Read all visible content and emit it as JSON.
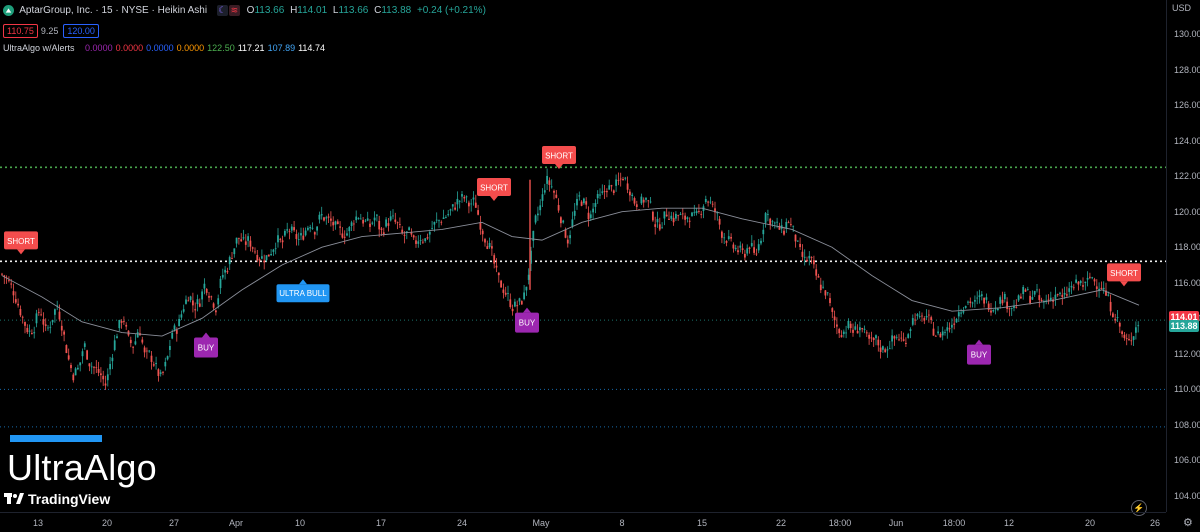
{
  "legend": {
    "symbol": "AptarGroup, Inc. · 15 · NYSE · Heikin Ashi",
    "o_label": "O",
    "o_value": "113.66",
    "h_label": "H",
    "h_value": "114.01",
    "l_label": "L",
    "l_value": "113.66",
    "c_label": "C",
    "c_value": "113.88",
    "change": "+0.24 (+0.21%)",
    "sell_price": "110.75",
    "spread": "9.25",
    "buy_price": "120.00",
    "indicator_name": "UltraAlgo w/Alerts",
    "indicator_values": [
      {
        "text": "0.0000",
        "color": "#9c27b0"
      },
      {
        "text": "0.0000",
        "color": "#f23645"
      },
      {
        "text": "0.0000",
        "color": "#2962ff"
      },
      {
        "text": "0.0000",
        "color": "#ff9800"
      },
      {
        "text": "122.50",
        "color": "#4caf50"
      },
      {
        "text": "117.21",
        "color": "#ffffff"
      },
      {
        "text": "107.89",
        "color": "#42a5f5"
      },
      {
        "text": "114.74",
        "color": "#ffffff"
      }
    ]
  },
  "price_axis": {
    "currency": "USD",
    "labels": [
      "130.00",
      "128.00",
      "126.00",
      "124.00",
      "122.00",
      "120.00",
      "118.00",
      "116.00",
      "114.00",
      "112.00",
      "110.00",
      "108.00",
      "106.00",
      "104.00"
    ],
    "tag_high": "114.01",
    "tag_last": "113.88"
  },
  "time_axis": {
    "labels": [
      "13",
      "20",
      "27",
      "Apr",
      "10",
      "17",
      "24",
      "May",
      "8",
      "15",
      "22",
      "18:00",
      "Jun",
      "18:00",
      "12",
      "20",
      "26"
    ]
  },
  "watermark": {
    "text": "UltraAlgo",
    "brand": "TradingView"
  },
  "colors": {
    "up": "#26a69a",
    "down": "#ef5350",
    "short_signal": "#f44d4d",
    "buy_signal": "#9c27b0",
    "ultra_bull": "#2196f3",
    "green_level": "#4caf50",
    "blue_level": "#2196f3"
  },
  "icons": [
    "settings-icon",
    "alert-icon",
    "tradingview-logo-icon"
  ],
  "chart_data": {
    "type": "candlestick",
    "title": "AptarGroup, Inc. · 15 · NYSE · Heikin Ashi",
    "ylim": [
      103,
      131
    ],
    "grid": false,
    "horizontal_levels": [
      {
        "value": 122.5,
        "style": "dotted",
        "color": "#4caf50"
      },
      {
        "value": 117.21,
        "style": "dotted",
        "color": "#ffffff"
      },
      {
        "value": 113.9,
        "style": "dotted",
        "color": "#26a69a"
      },
      {
        "value": 110.0,
        "style": "dotted",
        "color": "#2196f3"
      },
      {
        "value": 107.89,
        "style": "dotted",
        "color": "#2196f3"
      }
    ],
    "price_path": [
      {
        "t": 0,
        "p": 116.5
      },
      {
        "t": 5,
        "p": 116.2
      },
      {
        "t": 11,
        "p": 115.6
      },
      {
        "t": 16,
        "p": 114.8
      },
      {
        "t": 22,
        "p": 113.8
      },
      {
        "t": 27,
        "p": 113.2
      },
      {
        "t": 32,
        "p": 113.5
      },
      {
        "t": 38,
        "p": 114.6
      },
      {
        "t": 44,
        "p": 113.2
      },
      {
        "t": 49,
        "p": 113.8
      },
      {
        "t": 55,
        "p": 114.8
      },
      {
        "t": 60,
        "p": 113.6
      },
      {
        "t": 66,
        "p": 111.8
      },
      {
        "t": 71,
        "p": 110.8
      },
      {
        "t": 77,
        "p": 111.2
      },
      {
        "t": 82,
        "p": 112.6
      },
      {
        "t": 88,
        "p": 111.4
      },
      {
        "t": 93,
        "p": 111.2
      },
      {
        "t": 99,
        "p": 110.8
      },
      {
        "t": 104,
        "p": 110.2
      },
      {
        "t": 110,
        "p": 112.0
      },
      {
        "t": 115,
        "p": 113.2
      },
      {
        "t": 121,
        "p": 114.2
      },
      {
        "t": 126,
        "p": 112.8
      },
      {
        "t": 132,
        "p": 112.4
      },
      {
        "t": 137,
        "p": 113.6
      },
      {
        "t": 143,
        "p": 111.8
      },
      {
        "t": 148,
        "p": 112.0
      },
      {
        "t": 154,
        "p": 111.2
      },
      {
        "t": 159,
        "p": 110.6
      },
      {
        "t": 165,
        "p": 111.6
      },
      {
        "t": 170,
        "p": 113.2
      },
      {
        "t": 176,
        "p": 113.5
      },
      {
        "t": 181,
        "p": 114.6
      },
      {
        "t": 187,
        "p": 115.4
      },
      {
        "t": 192,
        "p": 114.6
      },
      {
        "t": 198,
        "p": 115.0
      },
      {
        "t": 203,
        "p": 116.0
      },
      {
        "t": 209,
        "p": 115.2
      },
      {
        "t": 214,
        "p": 114.6
      },
      {
        "t": 220,
        "p": 116.4
      },
      {
        "t": 225,
        "p": 116.8
      },
      {
        "t": 231,
        "p": 117.8
      },
      {
        "t": 236,
        "p": 118.6
      },
      {
        "t": 242,
        "p": 118.2
      },
      {
        "t": 247,
        "p": 118.4
      },
      {
        "t": 253,
        "p": 117.8
      },
      {
        "t": 258,
        "p": 117.4
      },
      {
        "t": 264,
        "p": 117.4
      },
      {
        "t": 269,
        "p": 117.8
      },
      {
        "t": 275,
        "p": 118.4
      },
      {
        "t": 280,
        "p": 118.2
      },
      {
        "t": 286,
        "p": 119.0
      },
      {
        "t": 291,
        "p": 118.8
      },
      {
        "t": 297,
        "p": 118.4
      },
      {
        "t": 302,
        "p": 118.8
      },
      {
        "t": 308,
        "p": 119.4
      },
      {
        "t": 313,
        "p": 119.0
      },
      {
        "t": 319,
        "p": 119.8
      },
      {
        "t": 324,
        "p": 119.6
      },
      {
        "t": 330,
        "p": 119.4
      },
      {
        "t": 335,
        "p": 119.0
      },
      {
        "t": 341,
        "p": 118.8
      },
      {
        "t": 346,
        "p": 118.8
      },
      {
        "t": 352,
        "p": 119.6
      },
      {
        "t": 357,
        "p": 119.8
      },
      {
        "t": 363,
        "p": 119.4
      },
      {
        "t": 368,
        "p": 119.2
      },
      {
        "t": 374,
        "p": 119.8
      },
      {
        "t": 379,
        "p": 118.8
      },
      {
        "t": 385,
        "p": 119.4
      },
      {
        "t": 390,
        "p": 119.6
      },
      {
        "t": 396,
        "p": 119.2
      },
      {
        "t": 401,
        "p": 118.6
      },
      {
        "t": 407,
        "p": 118.8
      },
      {
        "t": 412,
        "p": 118.2
      },
      {
        "t": 418,
        "p": 118.6
      },
      {
        "t": 423,
        "p": 118.4
      },
      {
        "t": 429,
        "p": 119.0
      },
      {
        "t": 434,
        "p": 119.4
      },
      {
        "t": 440,
        "p": 119.6
      },
      {
        "t": 445,
        "p": 119.8
      },
      {
        "t": 451,
        "p": 120.2
      },
      {
        "t": 456,
        "p": 120.6
      },
      {
        "t": 462,
        "p": 120.8
      },
      {
        "t": 467,
        "p": 120.4
      },
      {
        "t": 473,
        "p": 120.6
      },
      {
        "t": 478,
        "p": 119.4
      },
      {
        "t": 484,
        "p": 118.4
      },
      {
        "t": 489,
        "p": 117.8
      },
      {
        "t": 495,
        "p": 116.4
      },
      {
        "t": 500,
        "p": 115.8
      },
      {
        "t": 506,
        "p": 115.2
      },
      {
        "t": 511,
        "p": 114.6
      },
      {
        "t": 517,
        "p": 114.8
      },
      {
        "t": 522,
        "p": 115.2
      },
      {
        "t": 528,
        "p": 117.0
      },
      {
        "t": 533,
        "p": 119.4
      },
      {
        "t": 539,
        "p": 120.4
      },
      {
        "t": 544,
        "p": 121.8
      },
      {
        "t": 550,
        "p": 121.4
      },
      {
        "t": 555,
        "p": 120.6
      },
      {
        "t": 561,
        "p": 119.2
      },
      {
        "t": 566,
        "p": 118.4
      },
      {
        "t": 572,
        "p": 119.8
      },
      {
        "t": 577,
        "p": 120.8
      },
      {
        "t": 583,
        "p": 120.4
      },
      {
        "t": 588,
        "p": 119.6
      },
      {
        "t": 594,
        "p": 120.6
      },
      {
        "t": 599,
        "p": 120.8
      },
      {
        "t": 605,
        "p": 121.4
      },
      {
        "t": 610,
        "p": 121.2
      },
      {
        "t": 616,
        "p": 121.6
      },
      {
        "t": 621,
        "p": 122.0
      },
      {
        "t": 627,
        "p": 121.4
      },
      {
        "t": 632,
        "p": 120.6
      },
      {
        "t": 638,
        "p": 120.4
      },
      {
        "t": 643,
        "p": 120.8
      },
      {
        "t": 649,
        "p": 120.2
      },
      {
        "t": 654,
        "p": 119.2
      },
      {
        "t": 660,
        "p": 119.4
      },
      {
        "t": 665,
        "p": 120.0
      },
      {
        "t": 671,
        "p": 119.6
      },
      {
        "t": 676,
        "p": 119.8
      },
      {
        "t": 682,
        "p": 119.6
      },
      {
        "t": 687,
        "p": 119.8
      },
      {
        "t": 693,
        "p": 119.6
      },
      {
        "t": 698,
        "p": 120.0
      },
      {
        "t": 704,
        "p": 120.8
      },
      {
        "t": 709,
        "p": 120.4
      },
      {
        "t": 715,
        "p": 119.8
      },
      {
        "t": 720,
        "p": 118.8
      },
      {
        "t": 726,
        "p": 118.4
      },
      {
        "t": 731,
        "p": 118.0
      },
      {
        "t": 737,
        "p": 117.8
      },
      {
        "t": 742,
        "p": 117.6
      },
      {
        "t": 748,
        "p": 118.2
      },
      {
        "t": 753,
        "p": 117.4
      },
      {
        "t": 759,
        "p": 118.6
      },
      {
        "t": 764,
        "p": 120.0
      },
      {
        "t": 770,
        "p": 119.4
      },
      {
        "t": 775,
        "p": 119.2
      },
      {
        "t": 781,
        "p": 118.8
      },
      {
        "t": 786,
        "p": 119.6
      },
      {
        "t": 792,
        "p": 118.8
      },
      {
        "t": 797,
        "p": 117.8
      },
      {
        "t": 803,
        "p": 117.2
      },
      {
        "t": 808,
        "p": 117.4
      },
      {
        "t": 814,
        "p": 116.4
      },
      {
        "t": 819,
        "p": 115.8
      },
      {
        "t": 825,
        "p": 115.4
      },
      {
        "t": 830,
        "p": 114.2
      },
      {
        "t": 836,
        "p": 113.4
      },
      {
        "t": 841,
        "p": 113.2
      },
      {
        "t": 847,
        "p": 113.6
      },
      {
        "t": 852,
        "p": 113.2
      },
      {
        "t": 858,
        "p": 113.6
      },
      {
        "t": 863,
        "p": 113.0
      },
      {
        "t": 869,
        "p": 112.6
      },
      {
        "t": 874,
        "p": 112.8
      },
      {
        "t": 880,
        "p": 112.2
      },
      {
        "t": 885,
        "p": 112.4
      },
      {
        "t": 891,
        "p": 112.8
      },
      {
        "t": 896,
        "p": 113.0
      },
      {
        "t": 902,
        "p": 112.6
      },
      {
        "t": 907,
        "p": 113.4
      },
      {
        "t": 913,
        "p": 114.2
      },
      {
        "t": 918,
        "p": 113.8
      },
      {
        "t": 924,
        "p": 114.2
      },
      {
        "t": 929,
        "p": 113.6
      },
      {
        "t": 935,
        "p": 113.0
      },
      {
        "t": 940,
        "p": 113.2
      },
      {
        "t": 946,
        "p": 113.4
      },
      {
        "t": 951,
        "p": 113.8
      },
      {
        "t": 957,
        "p": 114.4
      },
      {
        "t": 962,
        "p": 114.8
      },
      {
        "t": 968,
        "p": 115.0
      },
      {
        "t": 973,
        "p": 114.8
      },
      {
        "t": 979,
        "p": 115.2
      },
      {
        "t": 984,
        "p": 115.0
      },
      {
        "t": 990,
        "p": 114.6
      },
      {
        "t": 995,
        "p": 114.8
      },
      {
        "t": 1001,
        "p": 115.2
      },
      {
        "t": 1006,
        "p": 114.8
      },
      {
        "t": 1012,
        "p": 114.6
      },
      {
        "t": 1017,
        "p": 115.0
      },
      {
        "t": 1023,
        "p": 115.6
      },
      {
        "t": 1028,
        "p": 115.2
      },
      {
        "t": 1034,
        "p": 115.4
      },
      {
        "t": 1039,
        "p": 114.8
      },
      {
        "t": 1045,
        "p": 115.0
      },
      {
        "t": 1050,
        "p": 115.2
      },
      {
        "t": 1056,
        "p": 115.4
      },
      {
        "t": 1061,
        "p": 115.0
      },
      {
        "t": 1067,
        "p": 115.6
      },
      {
        "t": 1072,
        "p": 115.8
      },
      {
        "t": 1078,
        "p": 116.0
      },
      {
        "t": 1083,
        "p": 115.8
      },
      {
        "t": 1089,
        "p": 116.4
      },
      {
        "t": 1094,
        "p": 116.0
      },
      {
        "t": 1100,
        "p": 115.8
      },
      {
        "t": 1105,
        "p": 115.2
      },
      {
        "t": 1111,
        "p": 114.4
      },
      {
        "t": 1116,
        "p": 113.8
      },
      {
        "t": 1122,
        "p": 112.8
      },
      {
        "t": 1127,
        "p": 112.6
      },
      {
        "t": 1133,
        "p": 113.4
      },
      {
        "t": 1137,
        "p": 113.9
      }
    ],
    "moving_average": [
      {
        "t": 0,
        "p": 116.4
      },
      {
        "t": 40,
        "p": 115.2
      },
      {
        "t": 80,
        "p": 113.8
      },
      {
        "t": 120,
        "p": 113.2
      },
      {
        "t": 160,
        "p": 113.0
      },
      {
        "t": 200,
        "p": 114.0
      },
      {
        "t": 240,
        "p": 115.6
      },
      {
        "t": 280,
        "p": 117.0
      },
      {
        "t": 320,
        "p": 118.0
      },
      {
        "t": 360,
        "p": 118.6
      },
      {
        "t": 400,
        "p": 118.8
      },
      {
        "t": 440,
        "p": 119.0
      },
      {
        "t": 480,
        "p": 119.4
      },
      {
        "t": 510,
        "p": 118.6
      },
      {
        "t": 540,
        "p": 118.4
      },
      {
        "t": 580,
        "p": 119.4
      },
      {
        "t": 620,
        "p": 120.0
      },
      {
        "t": 660,
        "p": 120.2
      },
      {
        "t": 700,
        "p": 120.2
      },
      {
        "t": 740,
        "p": 119.6
      },
      {
        "t": 790,
        "p": 119.0
      },
      {
        "t": 830,
        "p": 118.0
      },
      {
        "t": 870,
        "p": 116.4
      },
      {
        "t": 910,
        "p": 115.0
      },
      {
        "t": 950,
        "p": 114.4
      },
      {
        "t": 1000,
        "p": 114.6
      },
      {
        "t": 1050,
        "p": 115.0
      },
      {
        "t": 1100,
        "p": 115.6
      },
      {
        "t": 1137,
        "p": 114.74
      }
    ],
    "signals": [
      {
        "type": "short",
        "label": "SHORT",
        "t": 19,
        "price": 117.6
      },
      {
        "type": "buy",
        "label": "BUY",
        "t": 204,
        "price": 113.2
      },
      {
        "type": "ultra_bull",
        "label": "ULTRA BULL",
        "t": 301,
        "price": 116.2
      },
      {
        "type": "short",
        "label": "SHORT",
        "t": 492,
        "price": 120.6
      },
      {
        "type": "buy",
        "label": "BUY",
        "t": 525,
        "price": 114.6
      },
      {
        "type": "short",
        "label": "SHORT",
        "t": 557,
        "price": 122.4
      },
      {
        "type": "buy",
        "label": "BUY",
        "t": 977,
        "price": 112.8
      },
      {
        "type": "short",
        "label": "SHORT",
        "t": 1122,
        "price": 115.8
      }
    ]
  }
}
